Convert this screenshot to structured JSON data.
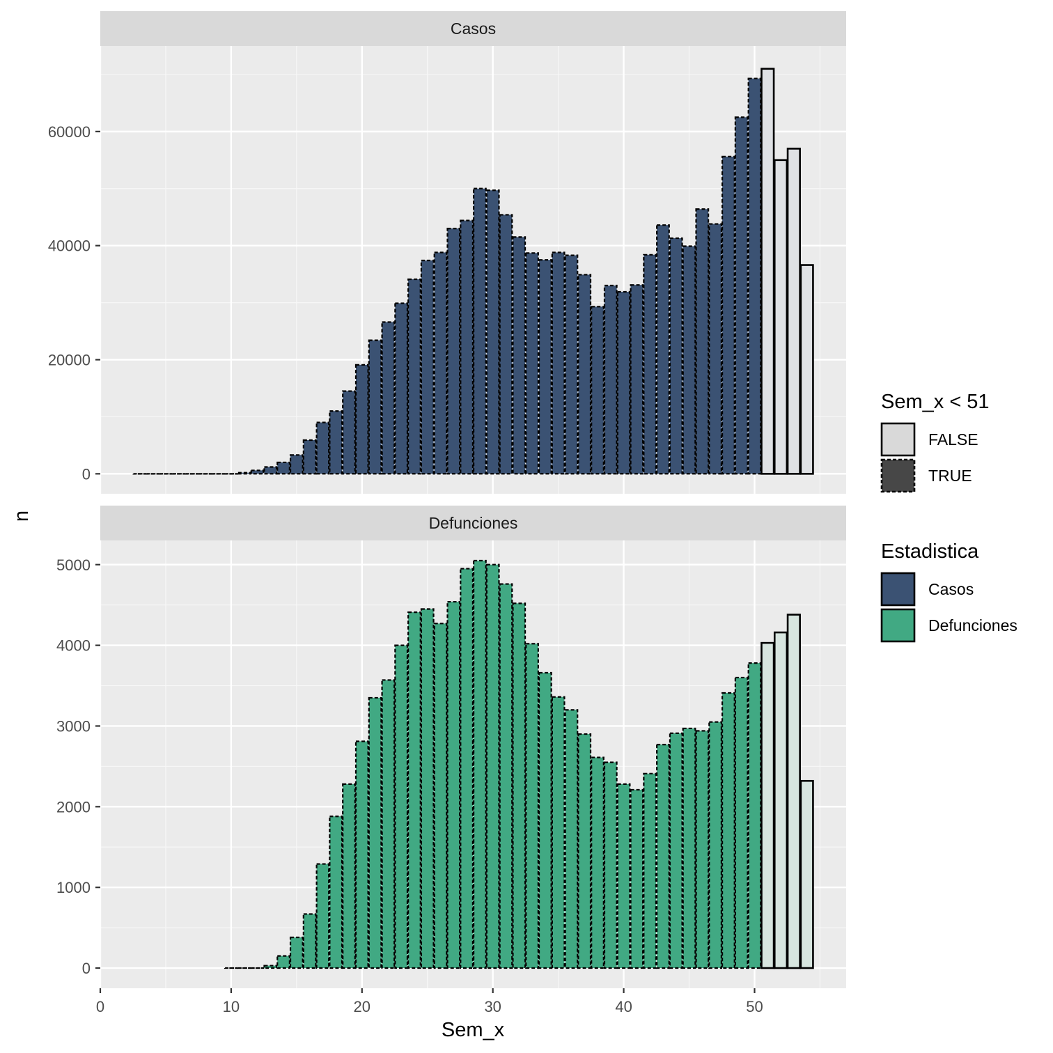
{
  "chart_data": {
    "type": "bar",
    "xlabel": "Sem_x",
    "ylabel": "n",
    "xlim": [
      0,
      57
    ],
    "x_ticks": [
      "0",
      "10",
      "20",
      "30",
      "40",
      "50"
    ],
    "x_tick_values": [
      0,
      10,
      20,
      30,
      40,
      50
    ],
    "grid": true,
    "colors": {
      "Casos": "#3b5273",
      "Defunciones": "#41a983",
      "FALSE": "#d9d9d9",
      "TRUE": "#474747",
      "panel_bg": "#ebebeb",
      "strip_bg": "#d9d9d9"
    },
    "panels": [
      {
        "strip": "Casos",
        "ylim": [
          -3500,
          75000
        ],
        "y_ticks": [
          "0",
          "20000",
          "40000",
          "60000"
        ],
        "y_tick_values": [
          0,
          20000,
          40000,
          60000
        ],
        "x": [
          3,
          4,
          5,
          6,
          7,
          8,
          9,
          10,
          11,
          12,
          13,
          14,
          15,
          16,
          17,
          18,
          19,
          20,
          21,
          22,
          23,
          24,
          25,
          26,
          27,
          28,
          29,
          30,
          31,
          32,
          33,
          34,
          35,
          36,
          37,
          38,
          39,
          40,
          41,
          42,
          43,
          44,
          45,
          46,
          47,
          48,
          49,
          50,
          51,
          52,
          53,
          54
        ],
        "values": [
          0,
          0,
          0,
          0,
          0,
          0,
          0,
          0,
          200,
          600,
          1200,
          2000,
          3300,
          5900,
          9000,
          11000,
          14500,
          19100,
          23400,
          26600,
          29900,
          34100,
          37400,
          38800,
          43000,
          44400,
          50000,
          49700,
          45400,
          41500,
          38700,
          37500,
          38800,
          38300,
          34900,
          29300,
          33000,
          31900,
          33100,
          38400,
          43600,
          41300,
          39900,
          46400,
          43800,
          55600,
          62500,
          69300,
          71000,
          55000,
          57000,
          36600
        ],
        "highlight": [
          true,
          true,
          true,
          true,
          true,
          true,
          true,
          true,
          true,
          true,
          true,
          true,
          true,
          true,
          true,
          true,
          true,
          true,
          true,
          true,
          true,
          true,
          true,
          true,
          true,
          true,
          true,
          true,
          true,
          true,
          true,
          true,
          true,
          true,
          true,
          true,
          true,
          true,
          true,
          true,
          true,
          true,
          true,
          true,
          true,
          true,
          true,
          true,
          false,
          false,
          false,
          false
        ]
      },
      {
        "strip": "Defunciones",
        "ylim": [
          -250,
          5300
        ],
        "y_ticks": [
          "0",
          "1000",
          "2000",
          "3000",
          "4000",
          "5000"
        ],
        "y_tick_values": [
          0,
          1000,
          2000,
          3000,
          4000,
          5000
        ],
        "x": [
          10,
          11,
          12,
          13,
          14,
          15,
          16,
          17,
          18,
          19,
          20,
          21,
          22,
          23,
          24,
          25,
          26,
          27,
          28,
          29,
          30,
          31,
          32,
          33,
          34,
          35,
          36,
          37,
          38,
          39,
          40,
          41,
          42,
          43,
          44,
          45,
          46,
          47,
          48,
          49,
          50,
          51,
          52,
          53,
          54
        ],
        "values": [
          0,
          0,
          0,
          30,
          150,
          380,
          670,
          1290,
          1880,
          2280,
          2810,
          3350,
          3570,
          4000,
          4410,
          4450,
          4270,
          4540,
          4950,
          5050,
          5000,
          4760,
          4520,
          4020,
          3660,
          3360,
          3200,
          2900,
          2610,
          2550,
          2280,
          2210,
          2410,
          2770,
          2910,
          2970,
          2940,
          3050,
          3410,
          3600,
          3780,
          4030,
          4160,
          4380,
          2320
        ],
        "highlight": [
          true,
          true,
          true,
          true,
          true,
          true,
          true,
          true,
          true,
          true,
          true,
          true,
          true,
          true,
          true,
          true,
          true,
          true,
          true,
          true,
          true,
          true,
          true,
          true,
          true,
          true,
          true,
          true,
          true,
          true,
          true,
          true,
          true,
          true,
          true,
          true,
          true,
          true,
          true,
          true,
          true,
          false,
          false,
          false,
          false
        ]
      }
    ],
    "legends": [
      {
        "title": "Sem_x < 51",
        "entries": [
          {
            "label": "FALSE",
            "color": "#d9d9d9",
            "dashed": false
          },
          {
            "label": "TRUE",
            "color": "#474747",
            "dashed": true
          }
        ]
      },
      {
        "title": "Estadistica",
        "entries": [
          {
            "label": "Casos",
            "color": "#3b5273",
            "dashed": false
          },
          {
            "label": "Defunciones",
            "color": "#41a983",
            "dashed": false
          }
        ]
      }
    ]
  }
}
